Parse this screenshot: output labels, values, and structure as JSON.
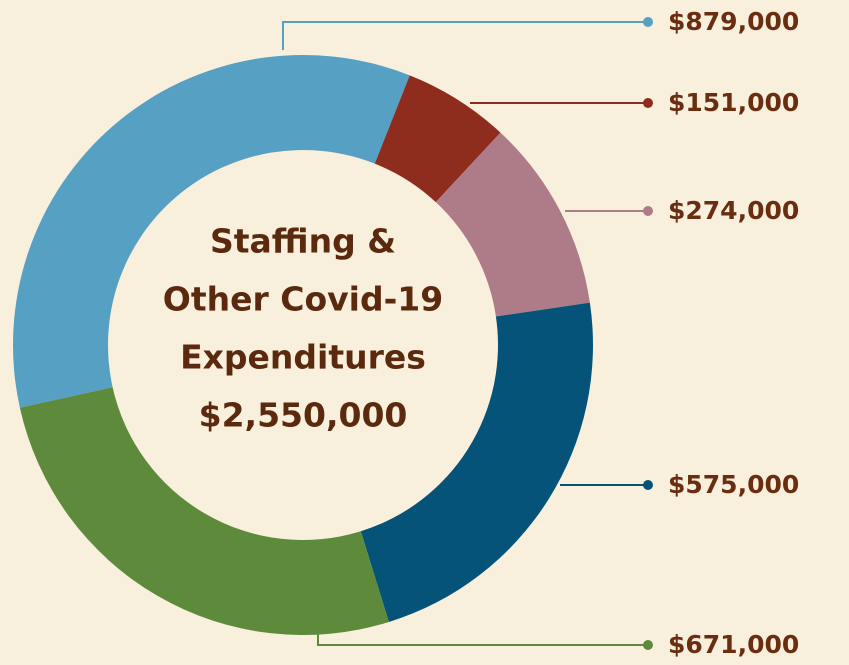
{
  "chart_data": {
    "type": "donut",
    "center_lines": [
      "Staffing &",
      "Other Covid-19",
      "Expenditures",
      "$2,550,000"
    ],
    "values": [
      879000,
      151000,
      274000,
      575000,
      671000
    ],
    "value_labels": [
      "$879,000",
      "$151,000",
      "$274,000",
      "$575,000",
      "$671,000"
    ],
    "colors": [
      "#56a0c4",
      "#8e2c1e",
      "#ad7c88",
      "#06537a",
      "#5e8a3c"
    ]
  }
}
